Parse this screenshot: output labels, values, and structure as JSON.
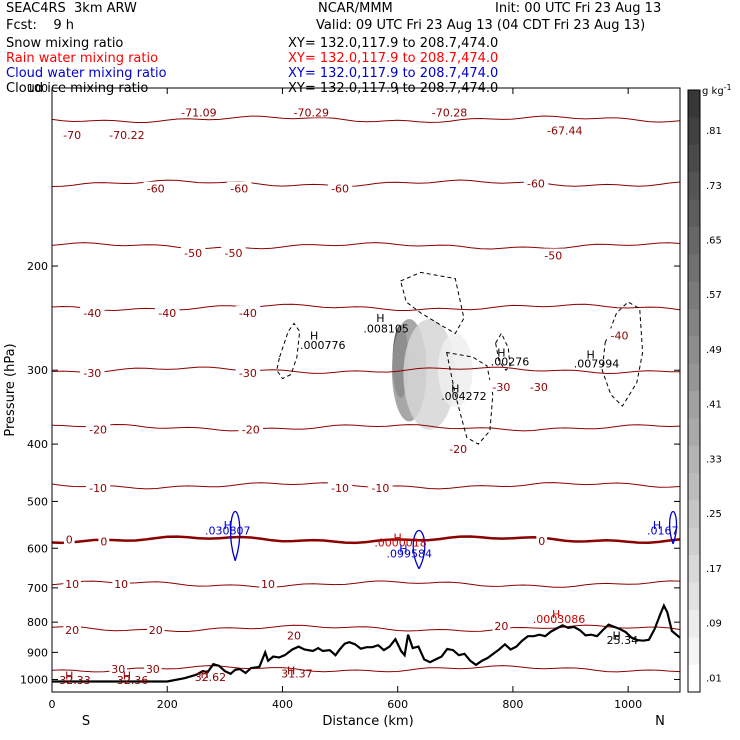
{
  "header": {
    "model": "SEAC4RS  3km ARW",
    "center": "NCAR/MMM",
    "init": "Init: 00 UTC Fri 23 Aug 13",
    "fcst": "Fcst:    9 h",
    "valid": "Valid: 09 UTC Fri 23 Aug 13 (04 CDT Fri 23 Aug 13)",
    "fields": [
      {
        "label": "Snow mixing ratio",
        "xy": "XY= 132.0,117.9 to 208.7,474.0",
        "color": "#000000"
      },
      {
        "label": "Rain water mixing ratio",
        "xy": "XY= 132.0,117.9 to 208.7,474.0",
        "color": "#ff0000"
      },
      {
        "label": "Cloud water mixing ratio",
        "xy": "XY= 132.0,117.9 to 208.7,474.0",
        "color": "#0000cc"
      },
      {
        "label": "Cloud ice mixing ratio",
        "xy": "XY= 132.0,117.9 to 208.7,474.0",
        "color": "#000000"
      }
    ]
  },
  "chart_data": {
    "type": "heatmap",
    "xlabel": "Distance (km)",
    "ylabel": "Pressure (hPa)",
    "xlim": [
      0,
      1090
    ],
    "ylim": [
      1050,
      100
    ],
    "y_scale": "log",
    "x_ticks": [
      0,
      200,
      400,
      600,
      800,
      1000
    ],
    "y_ticks": [
      100,
      200,
      300,
      400,
      500,
      600,
      700,
      800,
      900,
      1000
    ],
    "x_end_labels": {
      "left": "S",
      "right": "N"
    },
    "colorbar": {
      "unit": "g kg",
      "unit_exp": "-1",
      "ticks": [
        ".81",
        ".73",
        ".65",
        ".57",
        ".49",
        ".41",
        ".33",
        ".25",
        ".17",
        ".09",
        ".01"
      ]
    },
    "temperature_contours": [
      {
        "value": -70,
        "p": 113
      },
      {
        "value": -60,
        "p": 145
      },
      {
        "value": -50,
        "p": 185
      },
      {
        "value": -40,
        "p": 235
      },
      {
        "value": -30,
        "p": 300
      },
      {
        "value": -20,
        "p": 375
      },
      {
        "value": -10,
        "p": 470
      },
      {
        "value": 0,
        "p": 580
      },
      {
        "value": 10,
        "p": 690
      },
      {
        "value": 20,
        "p": 820
      },
      {
        "value": 30,
        "p": 960
      }
    ],
    "contour_labels": [
      {
        "text": "-70",
        "x": 35,
        "p": 120,
        "color": "#8b0000"
      },
      {
        "text": "-70.22",
        "x": 130,
        "p": 120,
        "color": "#8b0000"
      },
      {
        "text": "-71.09",
        "x": 255,
        "p": 110,
        "color": "#8b0000"
      },
      {
        "text": "-70.29",
        "x": 450,
        "p": 110,
        "color": "#8b0000"
      },
      {
        "text": "-70.28",
        "x": 690,
        "p": 110,
        "color": "#8b0000"
      },
      {
        "text": "-67.44",
        "x": 890,
        "p": 118,
        "color": "#8b0000"
      },
      {
        "text": "-60",
        "x": 180,
        "p": 148,
        "color": "#8b0000"
      },
      {
        "text": "-60",
        "x": 325,
        "p": 148,
        "color": "#8b0000"
      },
      {
        "text": "-60",
        "x": 500,
        "p": 148,
        "color": "#8b0000"
      },
      {
        "text": "-60",
        "x": 840,
        "p": 145,
        "color": "#8b0000"
      },
      {
        "text": "-50",
        "x": 245,
        "p": 190,
        "color": "#8b0000"
      },
      {
        "text": "-50",
        "x": 315,
        "p": 190,
        "color": "#8b0000"
      },
      {
        "text": "-50",
        "x": 870,
        "p": 192,
        "color": "#8b0000"
      },
      {
        "text": "-40",
        "x": 70,
        "p": 240,
        "color": "#8b0000"
      },
      {
        "text": "-40",
        "x": 200,
        "p": 240,
        "color": "#8b0000"
      },
      {
        "text": "-40",
        "x": 340,
        "p": 240,
        "color": "#8b0000"
      },
      {
        "text": "-40",
        "x": 985,
        "p": 262,
        "color": "#8b0000"
      },
      {
        "text": "-30",
        "x": 70,
        "p": 303,
        "color": "#8b0000"
      },
      {
        "text": "-30",
        "x": 340,
        "p": 303,
        "color": "#8b0000"
      },
      {
        "text": "-30",
        "x": 780,
        "p": 320,
        "color": "#8b0000"
      },
      {
        "text": "-30",
        "x": 845,
        "p": 320,
        "color": "#8b0000"
      },
      {
        "text": "-20",
        "x": 80,
        "p": 378,
        "color": "#8b0000"
      },
      {
        "text": "-20",
        "x": 345,
        "p": 378,
        "color": "#8b0000"
      },
      {
        "text": "-20",
        "x": 705,
        "p": 408,
        "color": "#8b0000"
      },
      {
        "text": "-10",
        "x": 80,
        "p": 475,
        "color": "#8b0000"
      },
      {
        "text": "-10",
        "x": 500,
        "p": 475,
        "color": "#8b0000"
      },
      {
        "text": "-10",
        "x": 570,
        "p": 475,
        "color": "#8b0000"
      },
      {
        "text": "0",
        "x": 30,
        "p": 580,
        "color": "#8b0000"
      },
      {
        "text": "0",
        "x": 90,
        "p": 585,
        "color": "#8b0000"
      },
      {
        "text": "0",
        "x": 850,
        "p": 583,
        "color": "#8b0000"
      },
      {
        "text": "10",
        "x": 35,
        "p": 690,
        "color": "#8b0000"
      },
      {
        "text": "10",
        "x": 120,
        "p": 690,
        "color": "#8b0000"
      },
      {
        "text": "10",
        "x": 375,
        "p": 690,
        "color": "#8b0000"
      },
      {
        "text": "20",
        "x": 35,
        "p": 825,
        "color": "#8b0000"
      },
      {
        "text": "20",
        "x": 180,
        "p": 825,
        "color": "#8b0000"
      },
      {
        "text": "20",
        "x": 420,
        "p": 842,
        "color": "#8b0000"
      },
      {
        "text": "20",
        "x": 780,
        "p": 812,
        "color": "#8b0000"
      },
      {
        "text": "30",
        "x": 115,
        "p": 960,
        "color": "#8b0000"
      },
      {
        "text": "30",
        "x": 175,
        "p": 960,
        "color": "#8b0000"
      }
    ],
    "extrema": [
      {
        "text": "H",
        "x": 455,
        "p": 262,
        "color": "#000000"
      },
      {
        "text": ".000776",
        "x": 470,
        "p": 272,
        "color": "#000000"
      },
      {
        "text": "H",
        "x": 570,
        "p": 245,
        "color": "#000000"
      },
      {
        "text": ".008105",
        "x": 580,
        "p": 255,
        "color": "#000000"
      },
      {
        "text": "H",
        "x": 780,
        "p": 280,
        "color": "#000000"
      },
      {
        "text": ".00276",
        "x": 795,
        "p": 290,
        "color": "#000000"
      },
      {
        "text": "H",
        "x": 700,
        "p": 322,
        "color": "#000000"
      },
      {
        "text": ".004272",
        "x": 715,
        "p": 332,
        "color": "#000000"
      },
      {
        "text": "H",
        "x": 935,
        "p": 282,
        "color": "#000000"
      },
      {
        "text": ".007994",
        "x": 945,
        "p": 292,
        "color": "#000000"
      },
      {
        "text": "H",
        "x": 305,
        "p": 548,
        "color": "#0000cc"
      },
      {
        "text": ".030807",
        "x": 305,
        "p": 560,
        "color": "#0000cc"
      },
      {
        "text": "H",
        "x": 1050,
        "p": 548,
        "color": "#0000cc"
      },
      {
        "text": ".0167",
        "x": 1060,
        "p": 560,
        "color": "#0000cc"
      },
      {
        "text": "H",
        "x": 600,
        "p": 575,
        "color": "#cc0000"
      },
      {
        "text": ".0000018",
        "x": 605,
        "p": 587,
        "color": "#cc0000"
      },
      {
        "text": "H",
        "x": 610,
        "p": 600,
        "color": "#0000cc"
      },
      {
        "text": ".099584",
        "x": 620,
        "p": 612,
        "color": "#0000cc"
      },
      {
        "text": "H",
        "x": 875,
        "p": 775,
        "color": "#cc0000"
      },
      {
        "text": ".0003086",
        "x": 880,
        "p": 790,
        "color": "#cc0000"
      },
      {
        "text": "H",
        "x": 980,
        "p": 842,
        "color": "#000000"
      },
      {
        "text": "25.34",
        "x": 990,
        "p": 857,
        "color": "#000000"
      },
      {
        "text": "H",
        "x": 30,
        "p": 985,
        "color": "#8b0000"
      },
      {
        "text": "32.33",
        "x": 40,
        "p": 1002,
        "color": "#8b0000"
      },
      {
        "text": "H",
        "x": 130,
        "p": 985,
        "color": "#8b0000"
      },
      {
        "text": "32.36",
        "x": 140,
        "p": 1002,
        "color": "#8b0000"
      },
      {
        "text": "H",
        "x": 265,
        "p": 978,
        "color": "#8b0000"
      },
      {
        "text": "32.62",
        "x": 275,
        "p": 990,
        "color": "#8b0000"
      },
      {
        "text": "H",
        "x": 415,
        "p": 965,
        "color": "#8b0000"
      },
      {
        "text": "31.37",
        "x": 425,
        "p": 977,
        "color": "#8b0000"
      }
    ],
    "terrain": [
      [
        0,
        1008
      ],
      [
        200,
        1008
      ],
      [
        230,
        995
      ],
      [
        250,
        982
      ],
      [
        262,
        968
      ],
      [
        270,
        972
      ],
      [
        280,
        942
      ],
      [
        290,
        948
      ],
      [
        300,
        968
      ],
      [
        310,
        978
      ],
      [
        318,
        963
      ],
      [
        326,
        960
      ],
      [
        336,
        975
      ],
      [
        345,
        957
      ],
      [
        360,
        952
      ],
      [
        370,
        900
      ],
      [
        375,
        930
      ],
      [
        384,
        915
      ],
      [
        394,
        918
      ],
      [
        404,
        910
      ],
      [
        417,
        890
      ],
      [
        428,
        880
      ],
      [
        438,
        890
      ],
      [
        453,
        895
      ],
      [
        462,
        885
      ],
      [
        470,
        895
      ],
      [
        482,
        892
      ],
      [
        492,
        910
      ],
      [
        500,
        888
      ],
      [
        508,
        870
      ],
      [
        516,
        865
      ],
      [
        526,
        872
      ],
      [
        536,
        887
      ],
      [
        546,
        882
      ],
      [
        556,
        882
      ],
      [
        566,
        875
      ],
      [
        576,
        892
      ],
      [
        586,
        880
      ],
      [
        596,
        855
      ],
      [
        606,
        895
      ],
      [
        612,
        910
      ],
      [
        618,
        840
      ],
      [
        626,
        885
      ],
      [
        636,
        880
      ],
      [
        646,
        925
      ],
      [
        656,
        935
      ],
      [
        666,
        925
      ],
      [
        676,
        915
      ],
      [
        686,
        888
      ],
      [
        696,
        892
      ],
      [
        706,
        910
      ],
      [
        716,
        905
      ],
      [
        726,
        930
      ],
      [
        736,
        945
      ],
      [
        746,
        930
      ],
      [
        756,
        920
      ],
      [
        766,
        905
      ],
      [
        776,
        890
      ],
      [
        786,
        872
      ],
      [
        796,
        890
      ],
      [
        806,
        880
      ],
      [
        816,
        860
      ],
      [
        826,
        845
      ],
      [
        836,
        845
      ],
      [
        846,
        840
      ],
      [
        856,
        845
      ],
      [
        866,
        830
      ],
      [
        876,
        820
      ],
      [
        886,
        810
      ],
      [
        896,
        818
      ],
      [
        906,
        815
      ],
      [
        916,
        825
      ],
      [
        926,
        842
      ],
      [
        936,
        840
      ],
      [
        946,
        845
      ],
      [
        956,
        825
      ],
      [
        966,
        808
      ],
      [
        976,
        815
      ],
      [
        986,
        822
      ],
      [
        996,
        832
      ],
      [
        1006,
        850
      ],
      [
        1016,
        858
      ],
      [
        1026,
        860
      ],
      [
        1036,
        857
      ],
      [
        1046,
        822
      ],
      [
        1056,
        775
      ],
      [
        1062,
        750
      ],
      [
        1068,
        770
      ],
      [
        1076,
        828
      ],
      [
        1090,
        850
      ]
    ],
    "snow": [
      {
        "x": 605,
        "p": 290,
        "rx": 14,
        "rp_top": 260,
        "rp_bot": 345,
        "value": 0.81
      },
      {
        "x": 620,
        "p": 300,
        "rx": 30,
        "rp_top": 255,
        "rp_bot": 380,
        "value": 0.45
      },
      {
        "x": 655,
        "p": 305,
        "rx": 45,
        "rp_top": 260,
        "rp_bot": 400,
        "value": 0.18
      },
      {
        "x": 700,
        "p": 300,
        "rx": 30,
        "rp_top": 270,
        "rp_bot": 360,
        "value": 0.07
      }
    ],
    "ice_contours": [
      {
        "type": "cloud-ice",
        "points": [
          [
            395,
            285
          ],
          [
            410,
            258
          ],
          [
            420,
            250
          ],
          [
            430,
            258
          ],
          [
            425,
            285
          ],
          [
            415,
            305
          ],
          [
            400,
            310
          ],
          [
            390,
            300
          ]
        ]
      },
      {
        "type": "cloud-ice",
        "points": [
          [
            605,
            212
          ],
          [
            640,
            205
          ],
          [
            700,
            210
          ],
          [
            715,
            245
          ],
          [
            700,
            260
          ],
          [
            670,
            250
          ],
          [
            640,
            240
          ],
          [
            615,
            230
          ]
        ]
      },
      {
        "type": "cloud-ice",
        "points": [
          [
            685,
            280
          ],
          [
            700,
            330
          ],
          [
            720,
            390
          ],
          [
            740,
            400
          ],
          [
            760,
            380
          ],
          [
            765,
            330
          ],
          [
            755,
            295
          ],
          [
            730,
            285
          ]
        ]
      },
      {
        "type": "cloud-ice",
        "points": [
          [
            960,
            270
          ],
          [
            980,
            240
          ],
          [
            1000,
            230
          ],
          [
            1020,
            236
          ],
          [
            1025,
            280
          ],
          [
            1015,
            315
          ],
          [
            990,
            345
          ],
          [
            970,
            330
          ],
          [
            955,
            300
          ]
        ]
      },
      {
        "type": "cloud-ice",
        "points": [
          [
            770,
            270
          ],
          [
            780,
            260
          ],
          [
            792,
            275
          ],
          [
            795,
            295
          ],
          [
            788,
            300
          ],
          [
            776,
            290
          ]
        ]
      }
    ],
    "cloud_water": [
      {
        "x": 318,
        "p_top": 520,
        "p_bot": 630,
        "w": 8
      },
      {
        "x": 637,
        "p_top": 560,
        "p_bot": 650,
        "w": 10
      },
      {
        "x": 1078,
        "p_top": 520,
        "p_bot": 590,
        "w": 6
      }
    ]
  }
}
